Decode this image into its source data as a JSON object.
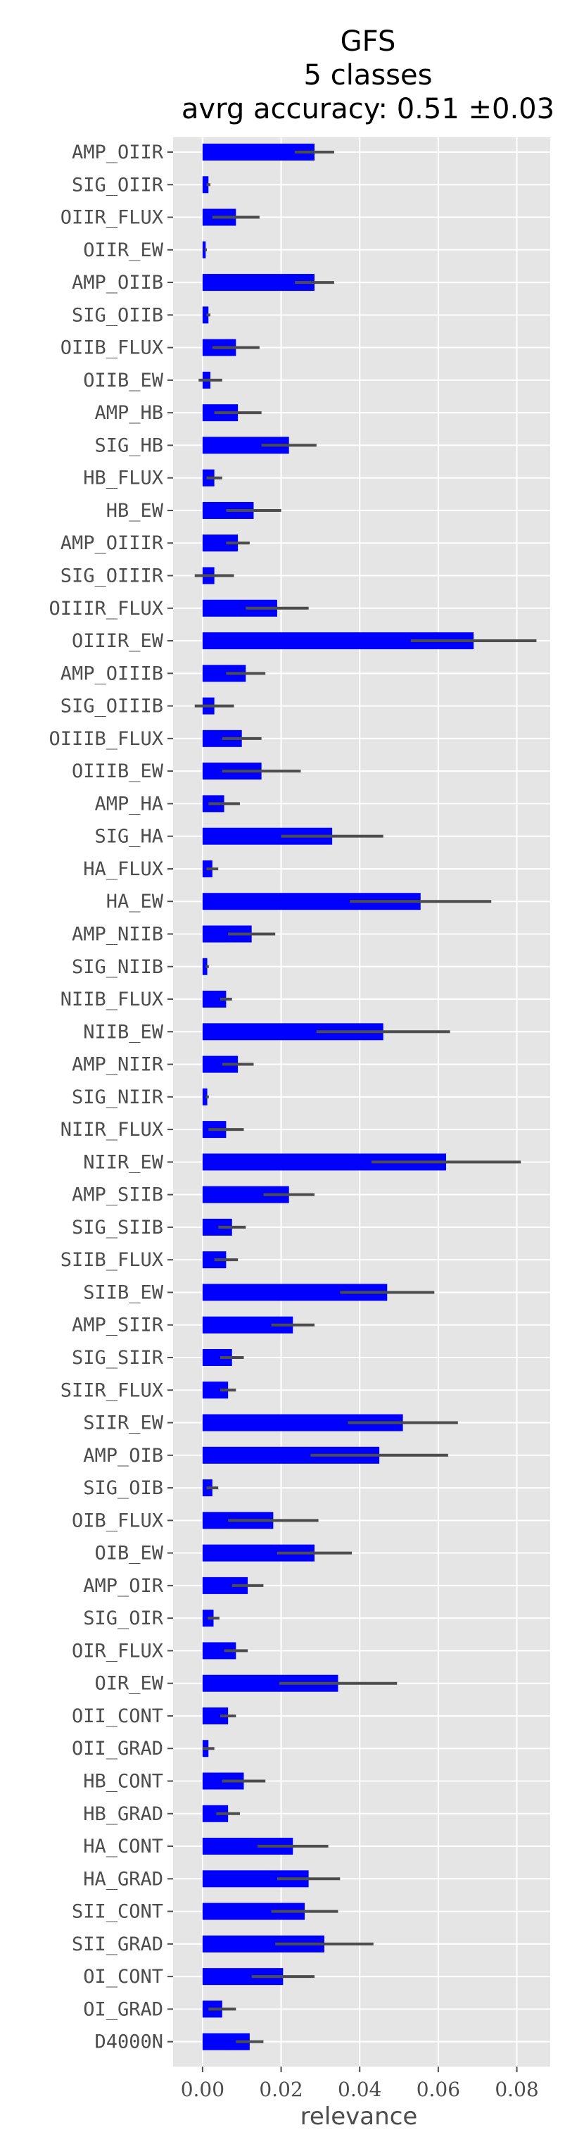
{
  "chart_data": {
    "type": "bar",
    "orientation": "horizontal",
    "title": [
      "GFS",
      "5 classes",
      "avrg accuracy: 0.51 ±0.03"
    ],
    "xlabel": "relevance",
    "ylabel": "",
    "xlim": [
      -0.0075,
      0.0885
    ],
    "xticks": [
      0.0,
      0.02,
      0.04,
      0.06,
      0.08
    ],
    "xtick_labels": [
      "0.00",
      "0.02",
      "0.04",
      "0.06",
      "0.08"
    ],
    "grid": true,
    "background": "#e5e5e5",
    "bar_color": "#0000ff",
    "error_color": "#4d4d4d",
    "categories": [
      "AMP_OIIR",
      "SIG_OIIR",
      "OIIR_FLUX",
      "OIIR_EW",
      "AMP_OIIB",
      "SIG_OIIB",
      "OIIB_FLUX",
      "OIIB_EW",
      "AMP_HB",
      "SIG_HB",
      "HB_FLUX",
      "HB_EW",
      "AMP_OIIIR",
      "SIG_OIIIR",
      "OIIIR_FLUX",
      "OIIIR_EW",
      "AMP_OIIIB",
      "SIG_OIIIB",
      "OIIIB_FLUX",
      "OIIIB_EW",
      "AMP_HA",
      "SIG_HA",
      "HA_FLUX",
      "HA_EW",
      "AMP_NIIB",
      "SIG_NIIB",
      "NIIB_FLUX",
      "NIIB_EW",
      "AMP_NIIR",
      "SIG_NIIR",
      "NIIR_FLUX",
      "NIIR_EW",
      "AMP_SIIB",
      "SIG_SIIB",
      "SIIB_FLUX",
      "SIIB_EW",
      "AMP_SIIR",
      "SIG_SIIR",
      "SIIR_FLUX",
      "SIIR_EW",
      "AMP_OIB",
      "SIG_OIB",
      "OIB_FLUX",
      "OIB_EW",
      "AMP_OIR",
      "SIG_OIR",
      "OIR_FLUX",
      "OIR_EW",
      "OII_CONT",
      "OII_GRAD",
      "HB_CONT",
      "HB_GRAD",
      "HA_CONT",
      "HA_GRAD",
      "SII_CONT",
      "SII_GRAD",
      "OI_CONT",
      "OI_GRAD",
      "D4000N"
    ],
    "values": [
      0.0285,
      0.0015,
      0.0085,
      0.0008,
      0.0285,
      0.0015,
      0.0085,
      0.002,
      0.009,
      0.022,
      0.003,
      0.013,
      0.009,
      0.003,
      0.019,
      0.069,
      0.011,
      0.003,
      0.01,
      0.015,
      0.0055,
      0.033,
      0.0025,
      0.0555,
      0.0125,
      0.0012,
      0.006,
      0.046,
      0.009,
      0.0012,
      0.006,
      0.062,
      0.022,
      0.0075,
      0.006,
      0.047,
      0.023,
      0.0075,
      0.0065,
      0.051,
      0.045,
      0.0025,
      0.018,
      0.0285,
      0.0115,
      0.0028,
      0.0085,
      0.0345,
      0.0065,
      0.0015,
      0.0105,
      0.0065,
      0.023,
      0.027,
      0.026,
      0.031,
      0.0205,
      0.005,
      0.012
    ],
    "errors": [
      0.005,
      0.0005,
      0.006,
      0.0003,
      0.005,
      0.0005,
      0.006,
      0.003,
      0.006,
      0.007,
      0.002,
      0.007,
      0.003,
      0.005,
      0.008,
      0.016,
      0.005,
      0.005,
      0.005,
      0.01,
      0.004,
      0.013,
      0.0015,
      0.018,
      0.006,
      0.0004,
      0.0015,
      0.017,
      0.004,
      0.0004,
      0.0045,
      0.019,
      0.0065,
      0.0035,
      0.003,
      0.012,
      0.0055,
      0.003,
      0.002,
      0.014,
      0.0175,
      0.0015,
      0.0115,
      0.0095,
      0.004,
      0.0015,
      0.003,
      0.015,
      0.002,
      0.0015,
      0.0055,
      0.003,
      0.009,
      0.008,
      0.0085,
      0.0125,
      0.008,
      0.0035,
      0.0035
    ]
  }
}
